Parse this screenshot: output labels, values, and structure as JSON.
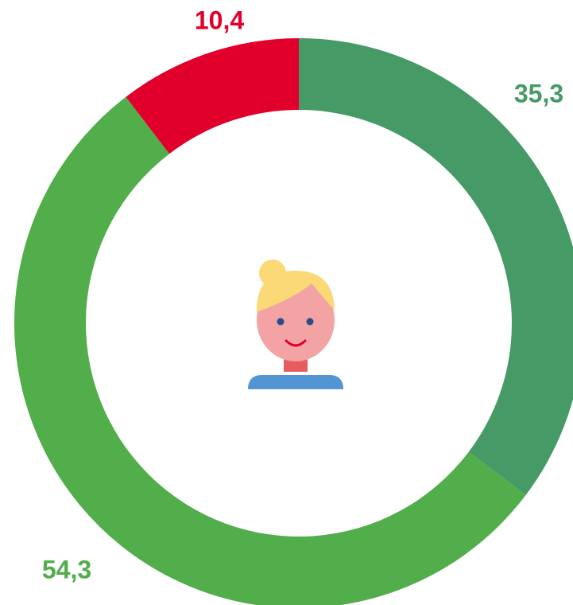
{
  "chart_data": {
    "type": "donut",
    "categories": [
      null,
      null,
      null
    ],
    "values": [
      35.3,
      54.3,
      10.4
    ],
    "value_labels": [
      "35,3",
      "54,3",
      "10,4"
    ],
    "colors": [
      "#459a66",
      "#52ad4b",
      "#e0002b"
    ]
  }
}
